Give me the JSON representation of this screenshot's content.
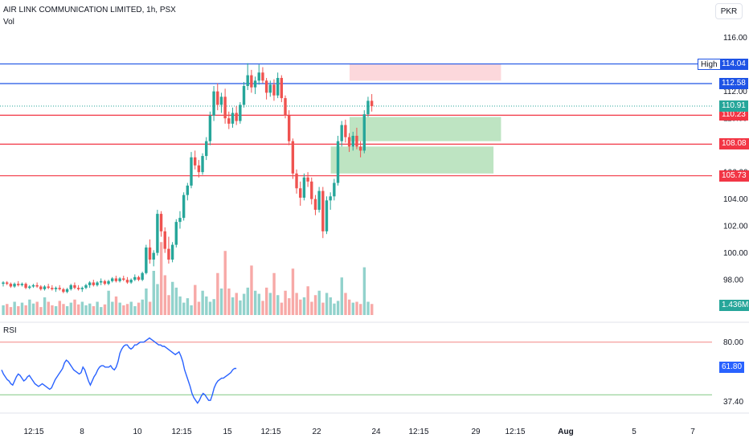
{
  "header": {
    "symbol": "AIR LINK COMMUNICATION LIMITED, 1h, PSX",
    "volume_label": "Vol",
    "currency": "PKR"
  },
  "colors": {
    "up": "#26a69a",
    "down": "#ef5350",
    "blue": "#1e53e5",
    "red": "#f23645",
    "green_zone": "#b7e1bb",
    "pink_zone": "#fcd4d8",
    "rsi": "#2962ff"
  },
  "chart_data": {
    "type": "candlestick",
    "price_axis": {
      "ylim": [
        95.5,
        117
      ],
      "ticks": [
        "116.00",
        "114.00",
        "112.00",
        "110.00",
        "108.00",
        "106.00",
        "104.00",
        "102.00",
        "100.00",
        "98.00"
      ]
    },
    "x_tick_labels": [
      "12:15",
      "8",
      "10",
      "12:15",
      "15",
      "12:15",
      "22",
      "24",
      "12:15",
      "29",
      "12:15",
      "Aug",
      "5",
      "7"
    ],
    "levels": [
      {
        "name": "High",
        "value": 114.04,
        "label": "114.04",
        "color": "blue"
      },
      {
        "value": 112.58,
        "label": "112.58",
        "color": "blue"
      },
      {
        "value": 110.23,
        "label": "110.23",
        "color": "red"
      },
      {
        "value": 108.08,
        "label": "108.08",
        "color": "red"
      },
      {
        "value": 105.73,
        "label": "105.73",
        "color": "red"
      }
    ],
    "last_price": {
      "value": 110.91,
      "label": "110.91"
    },
    "volume_last_label": "1.436M",
    "zones": [
      {
        "kind": "supply",
        "from_bar": 72,
        "to_bar": 108,
        "top": 114.05,
        "bottom": 112.8
      },
      {
        "kind": "demand",
        "from_bar": 72,
        "to_bar": 108,
        "top": 110.1,
        "bottom": 108.3
      },
      {
        "kind": "demand",
        "from_bar": 67,
        "to_bar": 106,
        "top": 107.9,
        "bottom": 105.9
      }
    ],
    "candles": [
      [
        97.7,
        97.9,
        97.5,
        97.8
      ],
      [
        97.8,
        97.9,
        97.6,
        97.7
      ],
      [
        97.7,
        97.8,
        97.4,
        97.5
      ],
      [
        97.5,
        97.8,
        97.4,
        97.7
      ],
      [
        97.7,
        97.9,
        97.5,
        97.6
      ],
      [
        97.6,
        97.8,
        97.5,
        97.7
      ],
      [
        97.7,
        97.8,
        97.3,
        97.4
      ],
      [
        97.4,
        97.6,
        97.3,
        97.5
      ],
      [
        97.5,
        97.7,
        97.4,
        97.6
      ],
      [
        97.6,
        97.8,
        97.4,
        97.5
      ],
      [
        97.5,
        97.6,
        97.2,
        97.3
      ],
      [
        97.3,
        97.6,
        97.2,
        97.5
      ],
      [
        97.5,
        97.7,
        97.3,
        97.4
      ],
      [
        97.4,
        97.6,
        97.2,
        97.3
      ],
      [
        97.3,
        97.5,
        97.1,
        97.4
      ],
      [
        97.4,
        97.6,
        97.2,
        97.3
      ],
      [
        97.3,
        97.4,
        97.0,
        97.1
      ],
      [
        97.1,
        97.4,
        97.0,
        97.3
      ],
      [
        97.3,
        97.7,
        97.2,
        97.6
      ],
      [
        97.6,
        97.8,
        97.3,
        97.4
      ],
      [
        97.4,
        97.6,
        97.2,
        97.3
      ],
      [
        97.3,
        97.5,
        97.1,
        97.4
      ],
      [
        97.4,
        97.7,
        97.3,
        97.6
      ],
      [
        97.6,
        97.9,
        97.4,
        97.8
      ],
      [
        97.8,
        98.0,
        97.5,
        97.6
      ],
      [
        97.6,
        97.9,
        97.5,
        97.8
      ],
      [
        97.8,
        98.1,
        97.6,
        97.9
      ],
      [
        97.9,
        98.0,
        97.6,
        97.7
      ],
      [
        97.7,
        98.0,
        97.6,
        97.9
      ],
      [
        97.9,
        98.2,
        97.8,
        98.1
      ],
      [
        98.1,
        98.3,
        97.8,
        97.9
      ],
      [
        97.9,
        98.2,
        97.8,
        98.1
      ],
      [
        98.1,
        98.3,
        97.9,
        98.0
      ],
      [
        98.0,
        98.2,
        97.7,
        97.8
      ],
      [
        97.8,
        98.1,
        97.7,
        98.0
      ],
      [
        98.0,
        98.4,
        97.9,
        98.2
      ],
      [
        98.2,
        98.3,
        97.9,
        98.0
      ],
      [
        98.0,
        98.6,
        97.9,
        98.5
      ],
      [
        98.5,
        100.6,
        98.4,
        100.4
      ],
      [
        100.4,
        101.0,
        99.2,
        99.5
      ],
      [
        99.5,
        100.2,
        99.0,
        100.0
      ],
      [
        100.0,
        103.2,
        99.8,
        102.9
      ],
      [
        102.9,
        103.1,
        101.2,
        101.6
      ],
      [
        101.6,
        101.9,
        100.0,
        100.3
      ],
      [
        100.3,
        101.2,
        99.2,
        99.5
      ],
      [
        99.5,
        100.8,
        99.3,
        100.6
      ],
      [
        100.6,
        102.5,
        100.4,
        102.3
      ],
      [
        102.3,
        103.1,
        101.8,
        102.6
      ],
      [
        102.6,
        104.5,
        102.4,
        104.3
      ],
      [
        104.3,
        105.2,
        103.9,
        105.0
      ],
      [
        105.0,
        107.5,
        104.8,
        107.1
      ],
      [
        107.1,
        107.6,
        106.2,
        106.5
      ],
      [
        106.5,
        106.9,
        105.6,
        106.0
      ],
      [
        106.0,
        107.4,
        105.8,
        107.2
      ],
      [
        107.2,
        108.6,
        106.9,
        108.3
      ],
      [
        108.3,
        110.5,
        108.0,
        110.2
      ],
      [
        110.2,
        112.4,
        109.8,
        112.0
      ],
      [
        112.0,
        112.6,
        110.6,
        111.0
      ],
      [
        111.0,
        111.9,
        110.4,
        111.6
      ],
      [
        111.6,
        112.2,
        109.6,
        110.0
      ],
      [
        110.0,
        110.5,
        109.2,
        109.6
      ],
      [
        109.6,
        110.8,
        109.3,
        110.4
      ],
      [
        110.4,
        110.9,
        109.5,
        109.8
      ],
      [
        109.8,
        111.2,
        109.6,
        111.0
      ],
      [
        111.0,
        112.7,
        110.8,
        112.4
      ],
      [
        112.4,
        114.1,
        112.1,
        113.2
      ],
      [
        113.2,
        113.6,
        111.9,
        112.3
      ],
      [
        112.3,
        113.1,
        111.8,
        112.8
      ],
      [
        112.8,
        114.0,
        112.5,
        113.4
      ],
      [
        113.4,
        113.8,
        112.6,
        112.8
      ],
      [
        112.8,
        113.0,
        111.4,
        111.9
      ],
      [
        111.9,
        112.8,
        111.6,
        112.5
      ],
      [
        112.5,
        112.9,
        111.3,
        111.7
      ],
      [
        111.7,
        113.4,
        111.5,
        113.0
      ],
      [
        113.0,
        113.2,
        111.2,
        111.5
      ],
      [
        111.5,
        111.7,
        110.0,
        110.2
      ],
      [
        110.2,
        110.6,
        108.0,
        108.3
      ],
      [
        108.3,
        108.5,
        105.5,
        105.9
      ],
      [
        105.9,
        106.2,
        104.4,
        104.8
      ],
      [
        104.8,
        105.3,
        103.5,
        104.1
      ],
      [
        104.1,
        105.9,
        103.9,
        105.6
      ],
      [
        105.6,
        106.0,
        104.9,
        105.3
      ],
      [
        105.3,
        105.6,
        103.6,
        104.0
      ],
      [
        104.0,
        104.3,
        102.8,
        103.2
      ],
      [
        103.2,
        104.9,
        103.0,
        104.6
      ],
      [
        104.6,
        104.9,
        101.1,
        101.6
      ],
      [
        101.6,
        104.2,
        101.4,
        103.9
      ],
      [
        103.9,
        104.5,
        103.2,
        104.2
      ],
      [
        104.2,
        105.5,
        103.9,
        105.2
      ],
      [
        105.2,
        108.7,
        105.0,
        108.3
      ],
      [
        108.3,
        109.8,
        107.9,
        109.5
      ],
      [
        109.5,
        109.9,
        108.2,
        108.6
      ],
      [
        108.6,
        108.9,
        107.5,
        107.9
      ],
      [
        107.9,
        109.0,
        107.6,
        108.7
      ],
      [
        108.7,
        109.3,
        107.7,
        107.9
      ],
      [
        107.9,
        108.3,
        107.1,
        107.6
      ],
      [
        107.6,
        110.6,
        107.4,
        110.3
      ],
      [
        110.3,
        111.6,
        110.1,
        111.3
      ],
      [
        111.3,
        111.8,
        110.5,
        110.9
      ]
    ],
    "volumes": [
      0.22,
      0.25,
      0.18,
      0.3,
      0.2,
      0.28,
      0.22,
      0.35,
      0.26,
      0.3,
      0.18,
      0.4,
      0.3,
      0.22,
      0.2,
      0.32,
      0.25,
      0.2,
      0.28,
      0.35,
      0.24,
      0.3,
      0.22,
      0.26,
      0.2,
      0.3,
      0.18,
      0.24,
      0.55,
      0.3,
      0.42,
      0.28,
      0.22,
      0.25,
      0.3,
      0.2,
      0.28,
      0.35,
      0.6,
      0.3,
      1.0,
      0.7,
      1.65,
      0.9,
      0.45,
      0.75,
      0.62,
      0.42,
      0.28,
      0.38,
      0.22,
      0.68,
      0.3,
      0.55,
      0.42,
      0.3,
      0.36,
      0.95,
      0.6,
      1.45,
      0.6,
      0.4,
      0.5,
      0.33,
      0.48,
      0.62,
      1.12,
      0.55,
      0.48,
      0.32,
      0.62,
      0.5,
      0.95,
      0.45,
      0.28,
      0.55,
      0.38,
      1.05,
      0.5,
      0.35,
      0.4,
      0.65,
      0.3,
      0.45,
      0.55,
      0.28,
      0.5,
      0.4,
      0.26,
      0.32,
      0.85,
      0.5,
      0.35,
      0.28,
      0.3,
      0.25,
      1.08,
      0.3,
      0.25
    ],
    "rsi": {
      "label": "RSI",
      "ticks": [
        "80.00",
        "37.40"
      ],
      "overbought": 80,
      "oversold": 37.4,
      "last": 61.8,
      "last_label": "61.80",
      "values": [
        60,
        57,
        55,
        53,
        52,
        50,
        49,
        52,
        55,
        57,
        56,
        54,
        52,
        53,
        55,
        56,
        54,
        52,
        50,
        49,
        48,
        49,
        50,
        49,
        48,
        47,
        46,
        47,
        50,
        53,
        55,
        57,
        59,
        61,
        65,
        67,
        66,
        64,
        62,
        60,
        59,
        58,
        57,
        58,
        62,
        60,
        56,
        52,
        49,
        52,
        55,
        57,
        60,
        62,
        63,
        63,
        62,
        62,
        62,
        63,
        61,
        60,
        62,
        66,
        72,
        75,
        77,
        78,
        78,
        76,
        75,
        76,
        78,
        78,
        79,
        80,
        80,
        80,
        81,
        82,
        83,
        82,
        81,
        80,
        79,
        78,
        78,
        77,
        77,
        76,
        75,
        74,
        73,
        72,
        71,
        72,
        73,
        70,
        66,
        60,
        56,
        52,
        48,
        43,
        40,
        38,
        36,
        38,
        41,
        43,
        42,
        40,
        38,
        38,
        42,
        47,
        50,
        52,
        53,
        54,
        54,
        55,
        56,
        57,
        58,
        60,
        61,
        61,
        62,
        62,
        62,
        62,
        62,
        62,
        62,
        62,
        62,
        62,
        62,
        62,
        62,
        62,
        62,
        62,
        62,
        62,
        62,
        62,
        62,
        62,
        62,
        62,
        62,
        62,
        62,
        62,
        62,
        62,
        62,
        62,
        62,
        62,
        62,
        62,
        62,
        62,
        62,
        62,
        62,
        62,
        62,
        62,
        62,
        62,
        62,
        62,
        62,
        62,
        62,
        62,
        62,
        62,
        62,
        62,
        62,
        62,
        62,
        62,
        62,
        62,
        62,
        62,
        62,
        62,
        62,
        62,
        62,
        62,
        62,
        62,
        62,
        62,
        62,
        62,
        62,
        62,
        62,
        62,
        62,
        62,
        62,
        62,
        62,
        62,
        62,
        62,
        62,
        62,
        62,
        62,
        62,
        62,
        62,
        62,
        62,
        62,
        62,
        62,
        62,
        62
      ]
    }
  }
}
